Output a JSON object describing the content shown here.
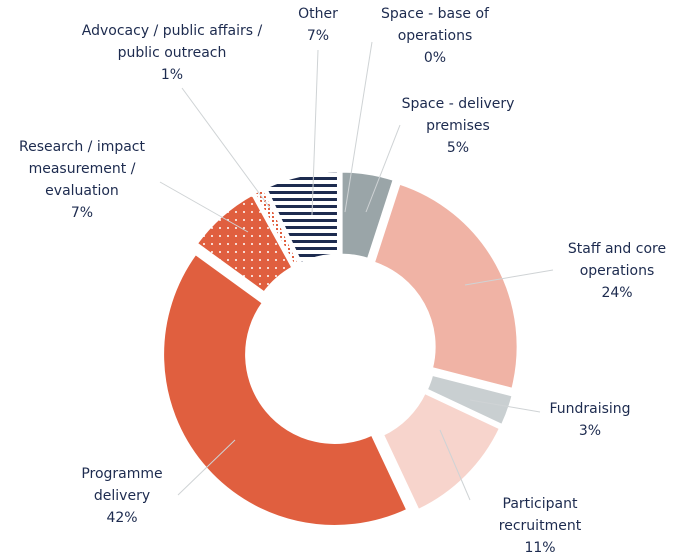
{
  "chart_data": {
    "type": "donut",
    "categories": [
      "Space - base of operations",
      "Space - delivery premises",
      "Staff and core operations",
      "Fundraising",
      "Participant recruitment",
      "Programme delivery",
      "Research / impact measurement / evaluation",
      "Advocacy / public affairs / public outreach",
      "Other"
    ],
    "values": [
      0,
      5,
      24,
      3,
      11,
      42,
      7,
      1,
      7
    ],
    "value_labels": [
      "0%",
      "5%",
      "24%",
      "3%",
      "11%",
      "42%",
      "7%",
      "1%",
      "7%"
    ],
    "colors": [
      "#9aa5a8",
      "#9aa5a8",
      "#f0b3a5",
      "#c9cfd1",
      "#f7d4cc",
      "#e05f3f",
      "#e05f3f",
      "#e05f3f",
      "#1d2b4f"
    ]
  }
}
